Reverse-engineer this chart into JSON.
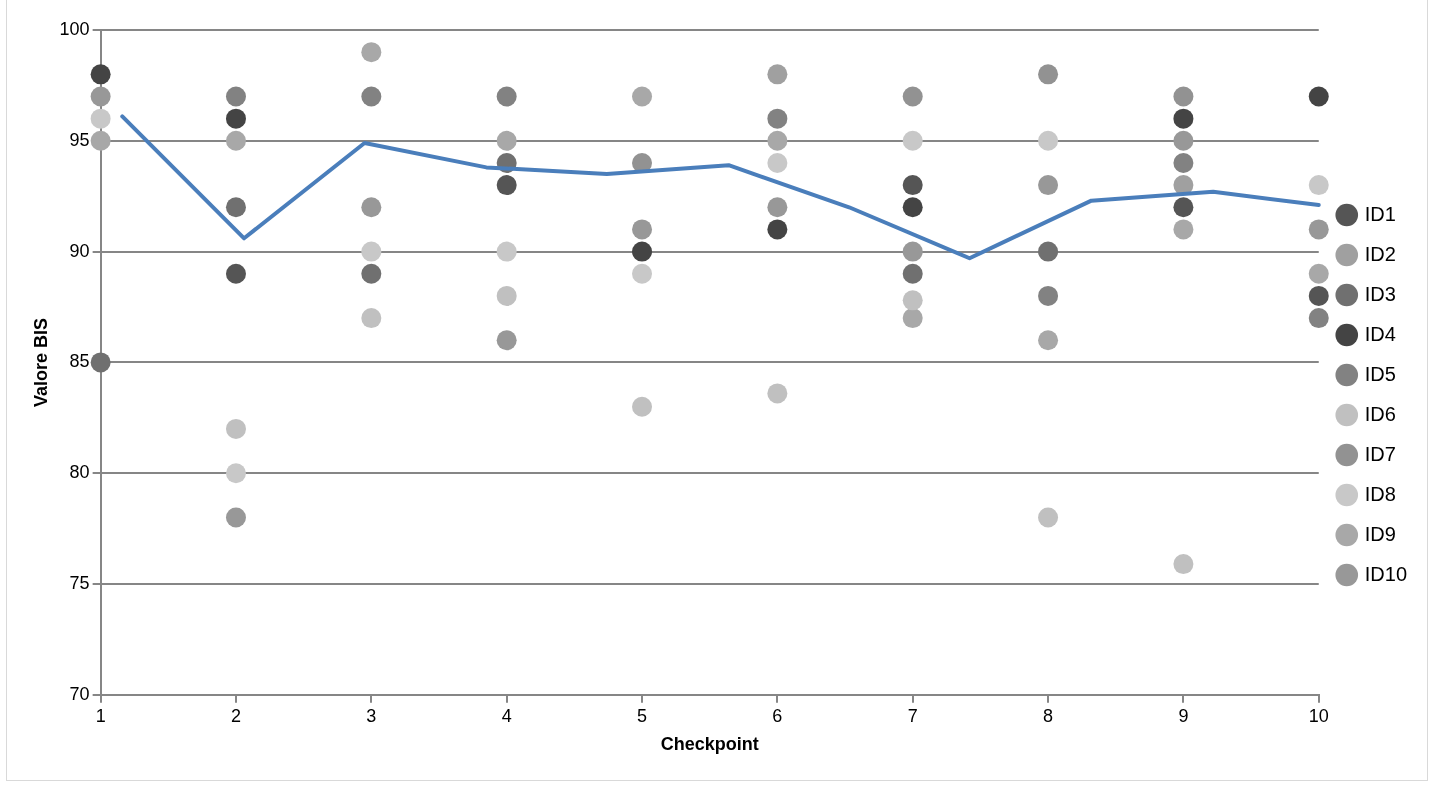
{
  "chart_data": {
    "type": "scatter",
    "xlabel": "Checkpoint",
    "ylabel": "Valore BIS",
    "x": [
      1,
      2,
      3,
      4,
      5,
      6,
      7,
      8,
      9,
      10
    ],
    "xlim": [
      1,
      10
    ],
    "xticks": [
      1,
      2,
      3,
      4,
      5,
      6,
      7,
      8,
      9,
      10
    ],
    "ylim": [
      70,
      100
    ],
    "yticks": [
      70,
      75,
      80,
      85,
      90,
      95,
      100
    ],
    "grid": "y",
    "legend": "right",
    "marker": "circle",
    "series": [
      {
        "name": "ID1",
        "color": "#555555",
        "values": [
          null,
          89,
          null,
          93,
          null,
          null,
          93,
          null,
          92,
          88
        ]
      },
      {
        "name": "ID2",
        "color": "#a0a0a0",
        "values": [
          null,
          null,
          null,
          null,
          null,
          98,
          null,
          null,
          93,
          null
        ]
      },
      {
        "name": "ID3",
        "color": "#707070",
        "values": [
          85,
          92,
          89,
          94,
          null,
          null,
          89,
          90,
          null,
          null
        ]
      },
      {
        "name": "ID4",
        "color": "#444444",
        "values": [
          98,
          96,
          null,
          null,
          90,
          91,
          92,
          null,
          96,
          97
        ]
      },
      {
        "name": "ID5",
        "color": "#828282",
        "values": [
          null,
          97,
          97,
          97,
          null,
          96,
          null,
          88,
          94,
          87
        ]
      },
      {
        "name": "ID6",
        "color": "#c0c0c0",
        "values": [
          null,
          82,
          87,
          88,
          83,
          83.6,
          87.8,
          78,
          75.9,
          null
        ]
      },
      {
        "name": "ID7",
        "color": "#929292",
        "values": [
          null,
          null,
          null,
          null,
          94,
          null,
          97,
          98,
          97,
          null
        ]
      },
      {
        "name": "ID8",
        "color": "#c8c8c8",
        "values": [
          96,
          80,
          90,
          90,
          89,
          94,
          95,
          95,
          null,
          93
        ]
      },
      {
        "name": "ID9",
        "color": "#a8a8a8",
        "values": [
          95,
          95,
          99,
          95,
          97,
          95,
          87,
          86,
          91,
          89
        ]
      },
      {
        "name": "ID10",
        "color": "#989898",
        "values": [
          97,
          78,
          92,
          86,
          91,
          92,
          90,
          93,
          95,
          91
        ]
      },
      {
        "type": "line",
        "color": "#4a7ebb",
        "marker": "none",
        "x": [
          1.16,
          2.06,
          2.95,
          3.85,
          4.74,
          5.64,
          6.53,
          7.42,
          8.32,
          9.22,
          10
        ],
        "values": [
          96.1,
          90.6,
          94.9,
          93.8,
          93.5,
          93.9,
          92,
          89.7,
          92.3,
          92.7,
          92.1
        ]
      }
    ]
  }
}
